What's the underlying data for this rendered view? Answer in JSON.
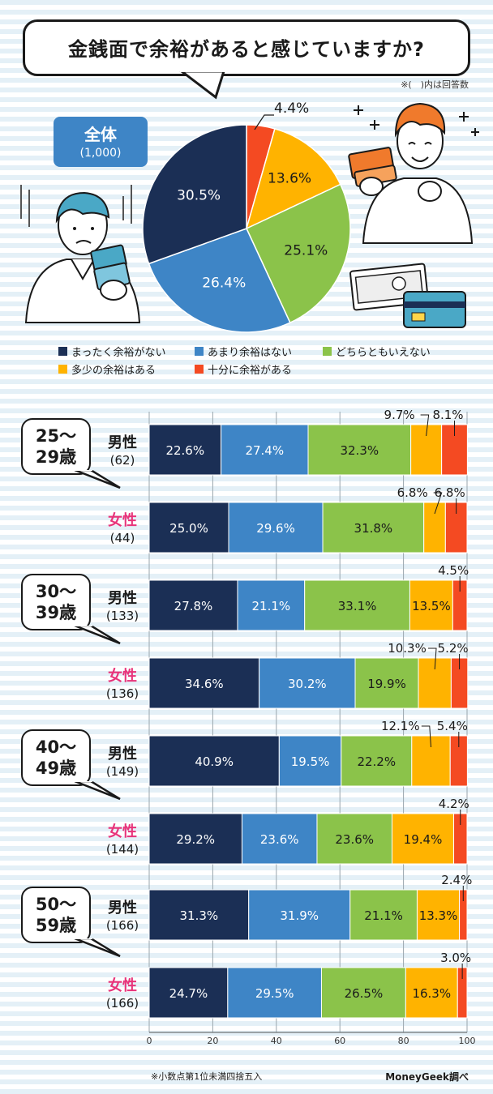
{
  "title": "金銭面で余裕があると感じていますか?",
  "note_top": "※(　)内は回答数",
  "total": {
    "label": "全体",
    "count": "(1,000)"
  },
  "legend": [
    {
      "label": "まったく余裕がない",
      "color": "#1b2f55"
    },
    {
      "label": "あまり余裕はない",
      "color": "#3e85c6"
    },
    {
      "label": "どちらともいえない",
      "color": "#8bc34a"
    },
    {
      "label": "多少の余裕はある",
      "color": "#ffb300"
    },
    {
      "label": "十分に余裕がある",
      "color": "#f44a22"
    }
  ],
  "chart_data": [
    {
      "type": "pie",
      "labels": [
        "まったく余裕がない",
        "あまり余裕はない",
        "どちらともいえない",
        "多少の余裕はある",
        "十分に余裕がある"
      ],
      "values": [
        30.5,
        26.4,
        25.1,
        13.6,
        4.4
      ],
      "value_labels": [
        "30.5%",
        "26.4%",
        "25.1%",
        "13.6%",
        "4.4%"
      ]
    },
    {
      "type": "bar",
      "orientation": "horizontal",
      "stacked": true,
      "categories": [
        "25~29歳 男性",
        "25~29歳 女性",
        "30~39歳 男性",
        "30~39歳 女性",
        "40~49歳 男性",
        "40~49歳 女性",
        "50~59歳 男性",
        "50~59歳 女性"
      ],
      "series": [
        {
          "name": "まったく余裕がない",
          "values": [
            22.6,
            25.0,
            27.8,
            34.6,
            40.9,
            29.2,
            31.3,
            24.7
          ]
        },
        {
          "name": "あまり余裕はない",
          "values": [
            27.4,
            29.6,
            21.1,
            30.2,
            19.5,
            23.6,
            31.9,
            29.5
          ]
        },
        {
          "name": "どちらともいえない",
          "values": [
            32.3,
            31.8,
            33.1,
            19.9,
            22.2,
            23.6,
            21.1,
            26.5
          ]
        },
        {
          "name": "多少の余裕はある",
          "values": [
            9.7,
            6.8,
            13.5,
            10.3,
            12.1,
            19.4,
            13.3,
            16.3
          ]
        },
        {
          "name": "十分に余裕がある",
          "values": [
            8.1,
            6.8,
            4.5,
            5.2,
            5.4,
            4.2,
            2.4,
            3.0
          ]
        }
      ],
      "xlim": [
        0,
        100
      ],
      "xticks": [
        0,
        20,
        40,
        60,
        80,
        100
      ]
    }
  ],
  "rows": [
    {
      "age": "25〜\n29歳",
      "gender": "男性",
      "count": "(62)",
      "labels": [
        "22.6%",
        "27.4%",
        "32.3%",
        "9.7%",
        "8.1%"
      ]
    },
    {
      "age": "",
      "gender": "女性",
      "count": "(44)",
      "labels": [
        "25.0%",
        "29.6%",
        "31.8%",
        "6.8%",
        "6.8%"
      ]
    },
    {
      "age": "30〜\n39歳",
      "gender": "男性",
      "count": "(133)",
      "labels": [
        "27.8%",
        "21.1%",
        "33.1%",
        "13.5%",
        "4.5%"
      ]
    },
    {
      "age": "",
      "gender": "女性",
      "count": "(136)",
      "labels": [
        "34.6%",
        "30.2%",
        "19.9%",
        "10.3%",
        "5.2%"
      ]
    },
    {
      "age": "40〜\n49歳",
      "gender": "男性",
      "count": "(149)",
      "labels": [
        "40.9%",
        "19.5%",
        "22.2%",
        "12.1%",
        "5.4%"
      ]
    },
    {
      "age": "",
      "gender": "女性",
      "count": "(144)",
      "labels": [
        "29.2%",
        "23.6%",
        "23.6%",
        "19.4%",
        "4.2%"
      ]
    },
    {
      "age": "50〜\n59歳",
      "gender": "男性",
      "count": "(166)",
      "labels": [
        "31.3%",
        "31.9%",
        "21.1%",
        "13.3%",
        "2.4%"
      ]
    },
    {
      "age": "",
      "gender": "女性",
      "count": "(166)",
      "labels": [
        "24.7%",
        "29.5%",
        "26.5%",
        "16.3%",
        "3.0%"
      ]
    }
  ],
  "footnote": "※小数点第1位未満四捨五入",
  "credit": "MoneyGeek調べ"
}
